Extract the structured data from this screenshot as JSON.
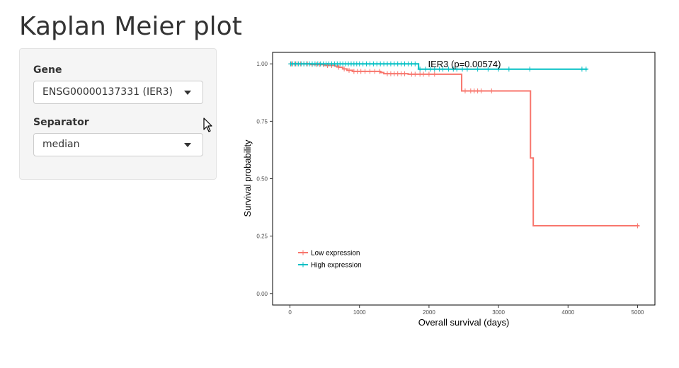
{
  "page": {
    "title": "Kaplan Meier plot"
  },
  "sidebar": {
    "gene": {
      "label": "Gene",
      "value": "ENSG00000137331 (IER3)",
      "icon": "chevron-down-icon"
    },
    "separator": {
      "label": "Separator",
      "value": "median",
      "icon": "chevron-down-icon"
    }
  },
  "chart_data": {
    "type": "line",
    "title": "IER3 (p=0.00574)",
    "xlabel": "Overall survival (days)",
    "ylabel": "Survival probability",
    "xlim": [
      -250,
      5250
    ],
    "ylim": [
      -0.05,
      1.05
    ],
    "xticks": [
      0,
      1000,
      2000,
      3000,
      4000,
      5000
    ],
    "yticks": [
      0.0,
      0.25,
      0.5,
      0.75,
      1.0
    ],
    "ytick_labels": [
      "0.00",
      "0.25",
      "0.50",
      "0.75",
      "1.00"
    ],
    "legend_position": "bottom-left",
    "grid": false,
    "series": [
      {
        "name": "Low expression",
        "color": "#f8766d",
        "steps": [
          [
            0,
            1.0
          ],
          [
            300,
            0.997
          ],
          [
            500,
            0.993
          ],
          [
            650,
            0.99
          ],
          [
            700,
            0.985
          ],
          [
            760,
            0.978
          ],
          [
            820,
            0.972
          ],
          [
            900,
            0.967
          ],
          [
            1300,
            0.962
          ],
          [
            1350,
            0.957
          ],
          [
            1700,
            0.955
          ],
          [
            2470,
            0.882
          ],
          [
            3460,
            0.59
          ],
          [
            3500,
            0.295
          ],
          [
            5020,
            0.295
          ]
        ],
        "censor_times": [
          20,
          60,
          100,
          150,
          200,
          250,
          320,
          380,
          430,
          480,
          540,
          600,
          700,
          780,
          850,
          920,
          970,
          1020,
          1080,
          1150,
          1220,
          1290,
          1400,
          1450,
          1500,
          1550,
          1600,
          1650,
          1750,
          1800,
          1870,
          1920,
          2000,
          2080,
          2520,
          2600,
          2650,
          2700,
          2750,
          2900,
          5000
        ]
      },
      {
        "name": "High expression",
        "color": "#00bfc4",
        "steps": [
          [
            0,
            1.0
          ],
          [
            1850,
            0.977
          ],
          [
            4280,
            0.977
          ]
        ],
        "censor_times": [
          10,
          40,
          80,
          120,
          160,
          200,
          240,
          280,
          320,
          360,
          400,
          440,
          480,
          520,
          560,
          600,
          640,
          680,
          720,
          760,
          800,
          840,
          880,
          920,
          960,
          1000,
          1050,
          1100,
          1150,
          1200,
          1250,
          1300,
          1350,
          1400,
          1450,
          1500,
          1550,
          1600,
          1650,
          1700,
          1750,
          1800,
          1870,
          1950,
          2020,
          2080,
          2150,
          2200,
          2280,
          2350,
          2400,
          2480,
          2550,
          2700,
          2850,
          3000,
          3150,
          3450,
          4200,
          4260
        ]
      }
    ]
  }
}
